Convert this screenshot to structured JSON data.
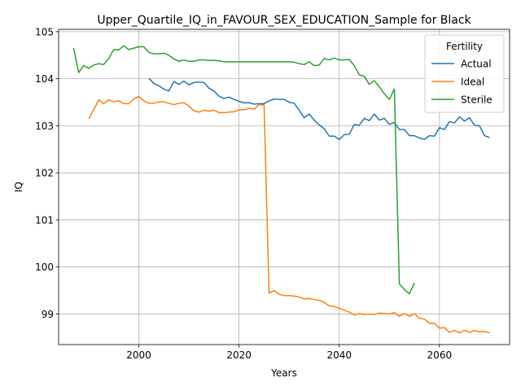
{
  "chart_data": {
    "type": "line",
    "title": "Upper_Quartile_IQ_in_FAVOUR_SEX_EDUCATION_Sample for Black",
    "xlabel": "Years",
    "ylabel": "IQ",
    "xlim": [
      1984,
      2074
    ],
    "ylim": [
      98.35,
      105.05
    ],
    "xticks": [
      2000,
      2020,
      2040,
      2060
    ],
    "yticks": [
      99,
      100,
      101,
      102,
      103,
      104,
      105
    ],
    "grid": true,
    "legend": {
      "title": "Fertility",
      "placement": "upper-right"
    },
    "series": [
      {
        "name": "Actual",
        "color": "#1f77b4",
        "x": [
          2002,
          2003,
          2004,
          2005,
          2006,
          2007,
          2008,
          2009,
          2010,
          2011,
          2012,
          2013,
          2014,
          2015,
          2016,
          2017,
          2018,
          2019,
          2020,
          2021,
          2022,
          2023,
          2024,
          2025,
          2026,
          2027,
          2028,
          2029,
          2030,
          2031,
          2032,
          2033,
          2034,
          2035,
          2036,
          2037,
          2038,
          2039,
          2040,
          2041,
          2042,
          2043,
          2044,
          2045,
          2046,
          2047,
          2048,
          2049,
          2050,
          2051,
          2052,
          2053,
          2054,
          2055,
          2056,
          2057,
          2058,
          2059,
          2060,
          2061,
          2062,
          2063,
          2064,
          2065,
          2066,
          2067,
          2068,
          2069,
          2070
        ],
        "y": [
          104.01,
          103.9,
          103.85,
          103.78,
          103.74,
          103.94,
          103.88,
          103.95,
          103.87,
          103.92,
          103.93,
          103.92,
          103.8,
          103.74,
          103.63,
          103.58,
          103.61,
          103.56,
          103.52,
          103.49,
          103.49,
          103.46,
          103.47,
          103.47,
          103.53,
          103.57,
          103.56,
          103.56,
          103.5,
          103.48,
          103.33,
          103.17,
          103.25,
          103.12,
          103.02,
          102.94,
          102.78,
          102.78,
          102.71,
          102.81,
          102.82,
          103.03,
          103.01,
          103.16,
          103.11,
          103.25,
          103.12,
          103.16,
          103.03,
          103.07,
          102.92,
          102.92,
          102.79,
          102.79,
          102.74,
          102.71,
          102.79,
          102.78,
          102.96,
          102.92,
          103.09,
          103.06,
          103.19,
          103.1,
          103.17,
          103.01,
          103.0,
          102.79,
          102.75
        ]
      },
      {
        "name": "Ideal",
        "color": "#ff7f0e",
        "x": [
          1990,
          1991,
          1992,
          1993,
          1994,
          1995,
          1996,
          1997,
          1998,
          1999,
          2000,
          2001,
          2002,
          2003,
          2004,
          2005,
          2006,
          2007,
          2008,
          2009,
          2010,
          2011,
          2012,
          2013,
          2014,
          2015,
          2016,
          2017,
          2018,
          2019,
          2020,
          2021,
          2022,
          2023,
          2024,
          2025,
          2026,
          2027,
          2028,
          2029,
          2030,
          2031,
          2032,
          2033,
          2034,
          2035,
          2036,
          2037,
          2038,
          2039,
          2040,
          2041,
          2042,
          2043,
          2044,
          2045,
          2046,
          2047,
          2048,
          2049,
          2050,
          2051,
          2052,
          2053,
          2054,
          2055,
          2056,
          2057,
          2058,
          2059,
          2060,
          2061,
          2062,
          2063,
          2064,
          2065,
          2066,
          2067,
          2068,
          2069,
          2070
        ],
        "y": [
          103.15,
          103.34,
          103.55,
          103.47,
          103.55,
          103.51,
          103.53,
          103.47,
          103.47,
          103.57,
          103.62,
          103.53,
          103.48,
          103.48,
          103.51,
          103.51,
          103.48,
          103.45,
          103.48,
          103.49,
          103.42,
          103.32,
          103.29,
          103.33,
          103.31,
          103.33,
          103.28,
          103.28,
          103.29,
          103.3,
          103.34,
          103.34,
          103.37,
          103.35,
          103.45,
          103.44,
          99.44,
          99.5,
          99.42,
          99.39,
          99.39,
          99.38,
          99.36,
          99.32,
          99.33,
          99.31,
          99.29,
          99.25,
          99.17,
          99.16,
          99.12,
          99.08,
          99.04,
          98.98,
          99.01,
          98.99,
          99.0,
          98.99,
          99.02,
          99.01,
          99.0,
          99.03,
          98.95,
          99.01,
          98.95,
          99.01,
          98.91,
          98.89,
          98.8,
          98.8,
          98.7,
          98.71,
          98.61,
          98.65,
          98.6,
          98.65,
          98.61,
          98.65,
          98.62,
          98.63,
          98.6
        ]
      },
      {
        "name": "Sterile",
        "color": "#2ca02c",
        "x": [
          1987,
          1988,
          1989,
          1990,
          1991,
          1992,
          1993,
          1994,
          1995,
          1996,
          1997,
          1998,
          1999,
          2000,
          2001,
          2002,
          2003,
          2004,
          2005,
          2006,
          2007,
          2008,
          2009,
          2010,
          2011,
          2012,
          2013,
          2014,
          2015,
          2016,
          2017,
          2018,
          2019,
          2020,
          2021,
          2022,
          2023,
          2024,
          2025,
          2026,
          2027,
          2028,
          2029,
          2030,
          2031,
          2032,
          2033,
          2034,
          2035,
          2036,
          2037,
          2038,
          2039,
          2040,
          2041,
          2042,
          2043,
          2044,
          2045,
          2046,
          2047,
          2048,
          2049,
          2050,
          2051,
          2052,
          2053,
          2054,
          2055
        ],
        "y": [
          104.65,
          104.13,
          104.28,
          104.22,
          104.29,
          104.32,
          104.3,
          104.43,
          104.62,
          104.61,
          104.7,
          104.62,
          104.65,
          104.68,
          104.68,
          104.56,
          104.53,
          104.53,
          104.54,
          104.5,
          104.42,
          104.37,
          104.4,
          104.37,
          104.37,
          104.4,
          104.4,
          104.39,
          104.39,
          104.38,
          104.36,
          104.36,
          104.36,
          104.36,
          104.36,
          104.36,
          104.36,
          104.36,
          104.36,
          104.36,
          104.36,
          104.36,
          104.36,
          104.36,
          104.35,
          104.32,
          104.3,
          104.36,
          104.28,
          104.29,
          104.43,
          104.4,
          104.44,
          104.4,
          104.4,
          104.41,
          104.28,
          104.08,
          104.05,
          103.88,
          103.96,
          103.83,
          103.68,
          103.56,
          103.78,
          99.64,
          99.52,
          99.43,
          99.66
        ]
      }
    ]
  }
}
